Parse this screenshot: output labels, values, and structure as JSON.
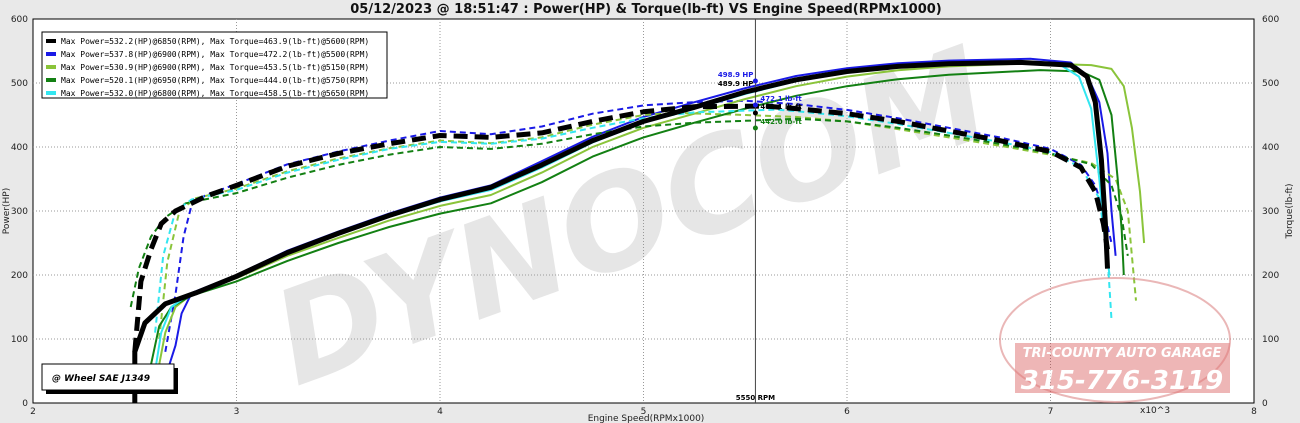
{
  "chart_data": {
    "type": "line",
    "title": "05/12/2023 @ 18:51:47 : Power(HP) & Torque(lb-ft) VS Engine Speed(RPMx1000)",
    "xlabel": "Engine Speed(RPMx1000)",
    "ylabel_left": "Power(HP)",
    "ylabel_right": "Torque(lb-ft)",
    "x_multiplier_label": "x10^3",
    "xlim": [
      2,
      8
    ],
    "ylim_left": [
      0,
      600
    ],
    "ylim_right": [
      0,
      600
    ],
    "x_ticks": [
      "2",
      "3",
      "4",
      "5",
      "6",
      "7",
      "8"
    ],
    "y_ticks": [
      "0",
      "100",
      "200",
      "300",
      "400",
      "500",
      "600"
    ],
    "grid": true,
    "legend_position": "top-left",
    "note_box": "@ Wheel SAE J1349",
    "cursor": {
      "x": 5.55,
      "label": "5550 RPM"
    },
    "cursor_values": [
      {
        "text": "498.9 HP",
        "color": "#1a1ae6"
      },
      {
        "text": "489.9 HP",
        "color": "#000000"
      },
      {
        "text": "472.1 lb-ft",
        "color": "#1a1ae6"
      },
      {
        "text": "463.1 lb-ft",
        "color": "#000000"
      },
      {
        "text": "442.0 lb-ft",
        "color": "#138013"
      }
    ],
    "series": [
      {
        "name": "Max Power=532.2(HP)@6850(RPM), Max Torque=463.9(lb-ft)@5600(RPM)",
        "color": "#000000",
        "width": 5,
        "power": [
          [
            2.5,
            0
          ],
          [
            2.5,
            80
          ],
          [
            2.55,
            125
          ],
          [
            2.65,
            155
          ],
          [
            2.8,
            172
          ],
          [
            3.0,
            198
          ],
          [
            3.25,
            235
          ],
          [
            3.5,
            265
          ],
          [
            3.75,
            293
          ],
          [
            4.0,
            318
          ],
          [
            4.25,
            337
          ],
          [
            4.5,
            372
          ],
          [
            4.75,
            410
          ],
          [
            5.0,
            440
          ],
          [
            5.25,
            462
          ],
          [
            5.5,
            486
          ],
          [
            5.75,
            505
          ],
          [
            6.0,
            518
          ],
          [
            6.25,
            526
          ],
          [
            6.5,
            530
          ],
          [
            6.85,
            532.2
          ],
          [
            7.1,
            528
          ],
          [
            7.18,
            510
          ],
          [
            7.22,
            470
          ],
          [
            7.25,
            380
          ],
          [
            7.27,
            280
          ],
          [
            7.28,
            210
          ]
        ],
        "torque": [
          [
            2.5,
            80
          ],
          [
            2.53,
            190
          ],
          [
            2.58,
            240
          ],
          [
            2.63,
            280
          ],
          [
            2.7,
            300
          ],
          [
            2.85,
            323
          ],
          [
            3.0,
            340
          ],
          [
            3.25,
            370
          ],
          [
            3.5,
            390
          ],
          [
            3.75,
            405
          ],
          [
            4.0,
            418
          ],
          [
            4.25,
            415
          ],
          [
            4.5,
            422
          ],
          [
            4.75,
            440
          ],
          [
            5.0,
            455
          ],
          [
            5.25,
            463
          ],
          [
            5.6,
            463.9
          ],
          [
            5.75,
            460
          ],
          [
            6.0,
            452
          ],
          [
            6.25,
            440
          ],
          [
            6.5,
            425
          ],
          [
            6.75,
            410
          ],
          [
            7.0,
            393
          ],
          [
            7.15,
            368
          ],
          [
            7.22,
            330
          ],
          [
            7.26,
            280
          ],
          [
            7.28,
            240
          ]
        ]
      },
      {
        "name": "Max Power=537.8(HP)@6900(RPM), Max Torque=472.2(lb-ft)@5500(RPM)",
        "color": "#1a1ae6",
        "width": 2,
        "power": [
          [
            2.65,
            40
          ],
          [
            2.7,
            90
          ],
          [
            2.73,
            140
          ],
          [
            2.78,
            172
          ],
          [
            3.0,
            200
          ],
          [
            3.25,
            238
          ],
          [
            3.5,
            268
          ],
          [
            3.75,
            296
          ],
          [
            4.0,
            321
          ],
          [
            4.25,
            340
          ],
          [
            4.5,
            378
          ],
          [
            4.75,
            416
          ],
          [
            5.0,
            447
          ],
          [
            5.25,
            470
          ],
          [
            5.5,
            492
          ],
          [
            5.75,
            511
          ],
          [
            6.0,
            523
          ],
          [
            6.25,
            531
          ],
          [
            6.5,
            535
          ],
          [
            6.9,
            537.8
          ],
          [
            7.1,
            532
          ],
          [
            7.18,
            512
          ],
          [
            7.24,
            470
          ],
          [
            7.28,
            390
          ],
          [
            7.3,
            300
          ],
          [
            7.32,
            230
          ]
        ],
        "torque": [
          [
            2.65,
            80
          ],
          [
            2.7,
            170
          ],
          [
            2.74,
            260
          ],
          [
            2.78,
            310
          ],
          [
            2.85,
            325
          ],
          [
            3.0,
            342
          ],
          [
            3.25,
            373
          ],
          [
            3.5,
            393
          ],
          [
            3.75,
            410
          ],
          [
            4.0,
            425
          ],
          [
            4.25,
            420
          ],
          [
            4.5,
            432
          ],
          [
            4.75,
            452
          ],
          [
            5.0,
            465
          ],
          [
            5.25,
            470
          ],
          [
            5.5,
            472.2
          ],
          [
            5.75,
            467
          ],
          [
            6.0,
            458
          ],
          [
            6.25,
            445
          ],
          [
            6.5,
            430
          ],
          [
            6.75,
            415
          ],
          [
            7.0,
            397
          ],
          [
            7.15,
            372
          ],
          [
            7.22,
            340
          ],
          [
            7.27,
            290
          ],
          [
            7.3,
            250
          ]
        ]
      },
      {
        "name": "Max Power=530.9(HP)@6900(RPM), Max Torque=453.5(lb-ft)@5150(RPM)",
        "color": "#8ac43a",
        "width": 2,
        "power": [
          [
            2.62,
            60
          ],
          [
            2.65,
            110
          ],
          [
            2.7,
            150
          ],
          [
            2.78,
            170
          ],
          [
            3.0,
            195
          ],
          [
            3.25,
            230
          ],
          [
            3.5,
            258
          ],
          [
            3.75,
            285
          ],
          [
            4.0,
            308
          ],
          [
            4.25,
            325
          ],
          [
            4.5,
            360
          ],
          [
            4.75,
            400
          ],
          [
            5.0,
            430
          ],
          [
            5.25,
            452
          ],
          [
            5.5,
            475
          ],
          [
            5.75,
            495
          ],
          [
            6.0,
            510
          ],
          [
            6.25,
            520
          ],
          [
            6.5,
            526
          ],
          [
            6.9,
            530.9
          ],
          [
            7.2,
            528
          ],
          [
            7.3,
            522
          ],
          [
            7.36,
            495
          ],
          [
            7.4,
            430
          ],
          [
            7.44,
            330
          ],
          [
            7.46,
            250
          ]
        ],
        "torque": [
          [
            2.62,
            100
          ],
          [
            2.66,
            220
          ],
          [
            2.72,
            300
          ],
          [
            2.8,
            320
          ],
          [
            3.0,
            335
          ],
          [
            3.25,
            362
          ],
          [
            3.5,
            382
          ],
          [
            3.75,
            398
          ],
          [
            4.0,
            410
          ],
          [
            4.25,
            406
          ],
          [
            4.5,
            415
          ],
          [
            4.75,
            435
          ],
          [
            5.0,
            450
          ],
          [
            5.15,
            453.5
          ],
          [
            5.5,
            450
          ],
          [
            5.75,
            447
          ],
          [
            6.0,
            440
          ],
          [
            6.25,
            428
          ],
          [
            6.5,
            415
          ],
          [
            6.75,
            402
          ],
          [
            7.0,
            388
          ],
          [
            7.2,
            375
          ],
          [
            7.32,
            350
          ],
          [
            7.38,
            300
          ],
          [
            7.4,
            230
          ],
          [
            7.42,
            160
          ]
        ]
      },
      {
        "name": "Max Power=520.1(HP)@6950(RPM), Max Torque=444.0(lb-ft)@5750(RPM)",
        "color": "#138013",
        "width": 2,
        "power": [
          [
            2.58,
            60
          ],
          [
            2.62,
            120
          ],
          [
            2.68,
            150
          ],
          [
            2.78,
            168
          ],
          [
            3.0,
            190
          ],
          [
            3.25,
            222
          ],
          [
            3.5,
            250
          ],
          [
            3.75,
            275
          ],
          [
            4.0,
            296
          ],
          [
            4.25,
            312
          ],
          [
            4.5,
            345
          ],
          [
            4.75,
            385
          ],
          [
            5.0,
            415
          ],
          [
            5.25,
            438
          ],
          [
            5.5,
            460
          ],
          [
            5.75,
            480
          ],
          [
            6.0,
            495
          ],
          [
            6.25,
            506
          ],
          [
            6.5,
            513
          ],
          [
            6.95,
            520.1
          ],
          [
            7.15,
            518
          ],
          [
            7.24,
            505
          ],
          [
            7.3,
            450
          ],
          [
            7.33,
            350
          ],
          [
            7.35,
            270
          ],
          [
            7.36,
            200
          ]
        ],
        "torque": [
          [
            2.48,
            150
          ],
          [
            2.52,
            210
          ],
          [
            2.58,
            260
          ],
          [
            2.65,
            290
          ],
          [
            2.75,
            312
          ],
          [
            3.0,
            328
          ],
          [
            3.25,
            352
          ],
          [
            3.5,
            372
          ],
          [
            3.75,
            388
          ],
          [
            4.0,
            400
          ],
          [
            4.25,
            397
          ],
          [
            4.5,
            405
          ],
          [
            4.75,
            420
          ],
          [
            5.0,
            432
          ],
          [
            5.25,
            438
          ],
          [
            5.5,
            441
          ],
          [
            5.75,
            444.0
          ],
          [
            6.0,
            440
          ],
          [
            6.25,
            430
          ],
          [
            6.5,
            418
          ],
          [
            6.75,
            405
          ],
          [
            7.0,
            390
          ],
          [
            7.2,
            373
          ],
          [
            7.3,
            340
          ],
          [
            7.35,
            290
          ],
          [
            7.38,
            230
          ]
        ]
      },
      {
        "name": "Max Power=532.0(HP)@6800(RPM), Max Torque=458.5(lb-ft)@5650(RPM)",
        "color": "#33e6f0",
        "width": 2,
        "power": [
          [
            2.6,
            50
          ],
          [
            2.63,
            110
          ],
          [
            2.68,
            150
          ],
          [
            2.76,
            168
          ],
          [
            3.0,
            196
          ],
          [
            3.25,
            233
          ],
          [
            3.5,
            263
          ],
          [
            3.75,
            291
          ],
          [
            4.0,
            315
          ],
          [
            4.25,
            333
          ],
          [
            4.5,
            368
          ],
          [
            4.75,
            407
          ],
          [
            5.0,
            438
          ],
          [
            5.25,
            460
          ],
          [
            5.5,
            483
          ],
          [
            5.75,
            503
          ],
          [
            6.0,
            516
          ],
          [
            6.25,
            524
          ],
          [
            6.5,
            529
          ],
          [
            6.8,
            532.0
          ],
          [
            7.05,
            528
          ],
          [
            7.14,
            510
          ],
          [
            7.2,
            460
          ],
          [
            7.24,
            350
          ],
          [
            7.27,
            250
          ],
          [
            7.29,
            200
          ]
        ],
        "torque": [
          [
            2.6,
            110
          ],
          [
            2.64,
            230
          ],
          [
            2.7,
            300
          ],
          [
            2.78,
            318
          ],
          [
            3.0,
            333
          ],
          [
            3.25,
            360
          ],
          [
            3.5,
            380
          ],
          [
            3.75,
            397
          ],
          [
            4.0,
            408
          ],
          [
            4.25,
            405
          ],
          [
            4.5,
            413
          ],
          [
            4.75,
            430
          ],
          [
            5.0,
            445
          ],
          [
            5.25,
            454
          ],
          [
            5.65,
            458.5
          ],
          [
            5.75,
            456
          ],
          [
            6.0,
            448
          ],
          [
            6.25,
            436
          ],
          [
            6.5,
            422
          ],
          [
            6.75,
            408
          ],
          [
            7.0,
            392
          ],
          [
            7.15,
            368
          ],
          [
            7.24,
            320
          ],
          [
            7.28,
            230
          ],
          [
            7.3,
            130
          ]
        ]
      }
    ],
    "watermark": "DYNOCOM",
    "shop_name": "TRI-COUNTY AUTO GARAGE",
    "shop_phone": "315-776-3119"
  }
}
